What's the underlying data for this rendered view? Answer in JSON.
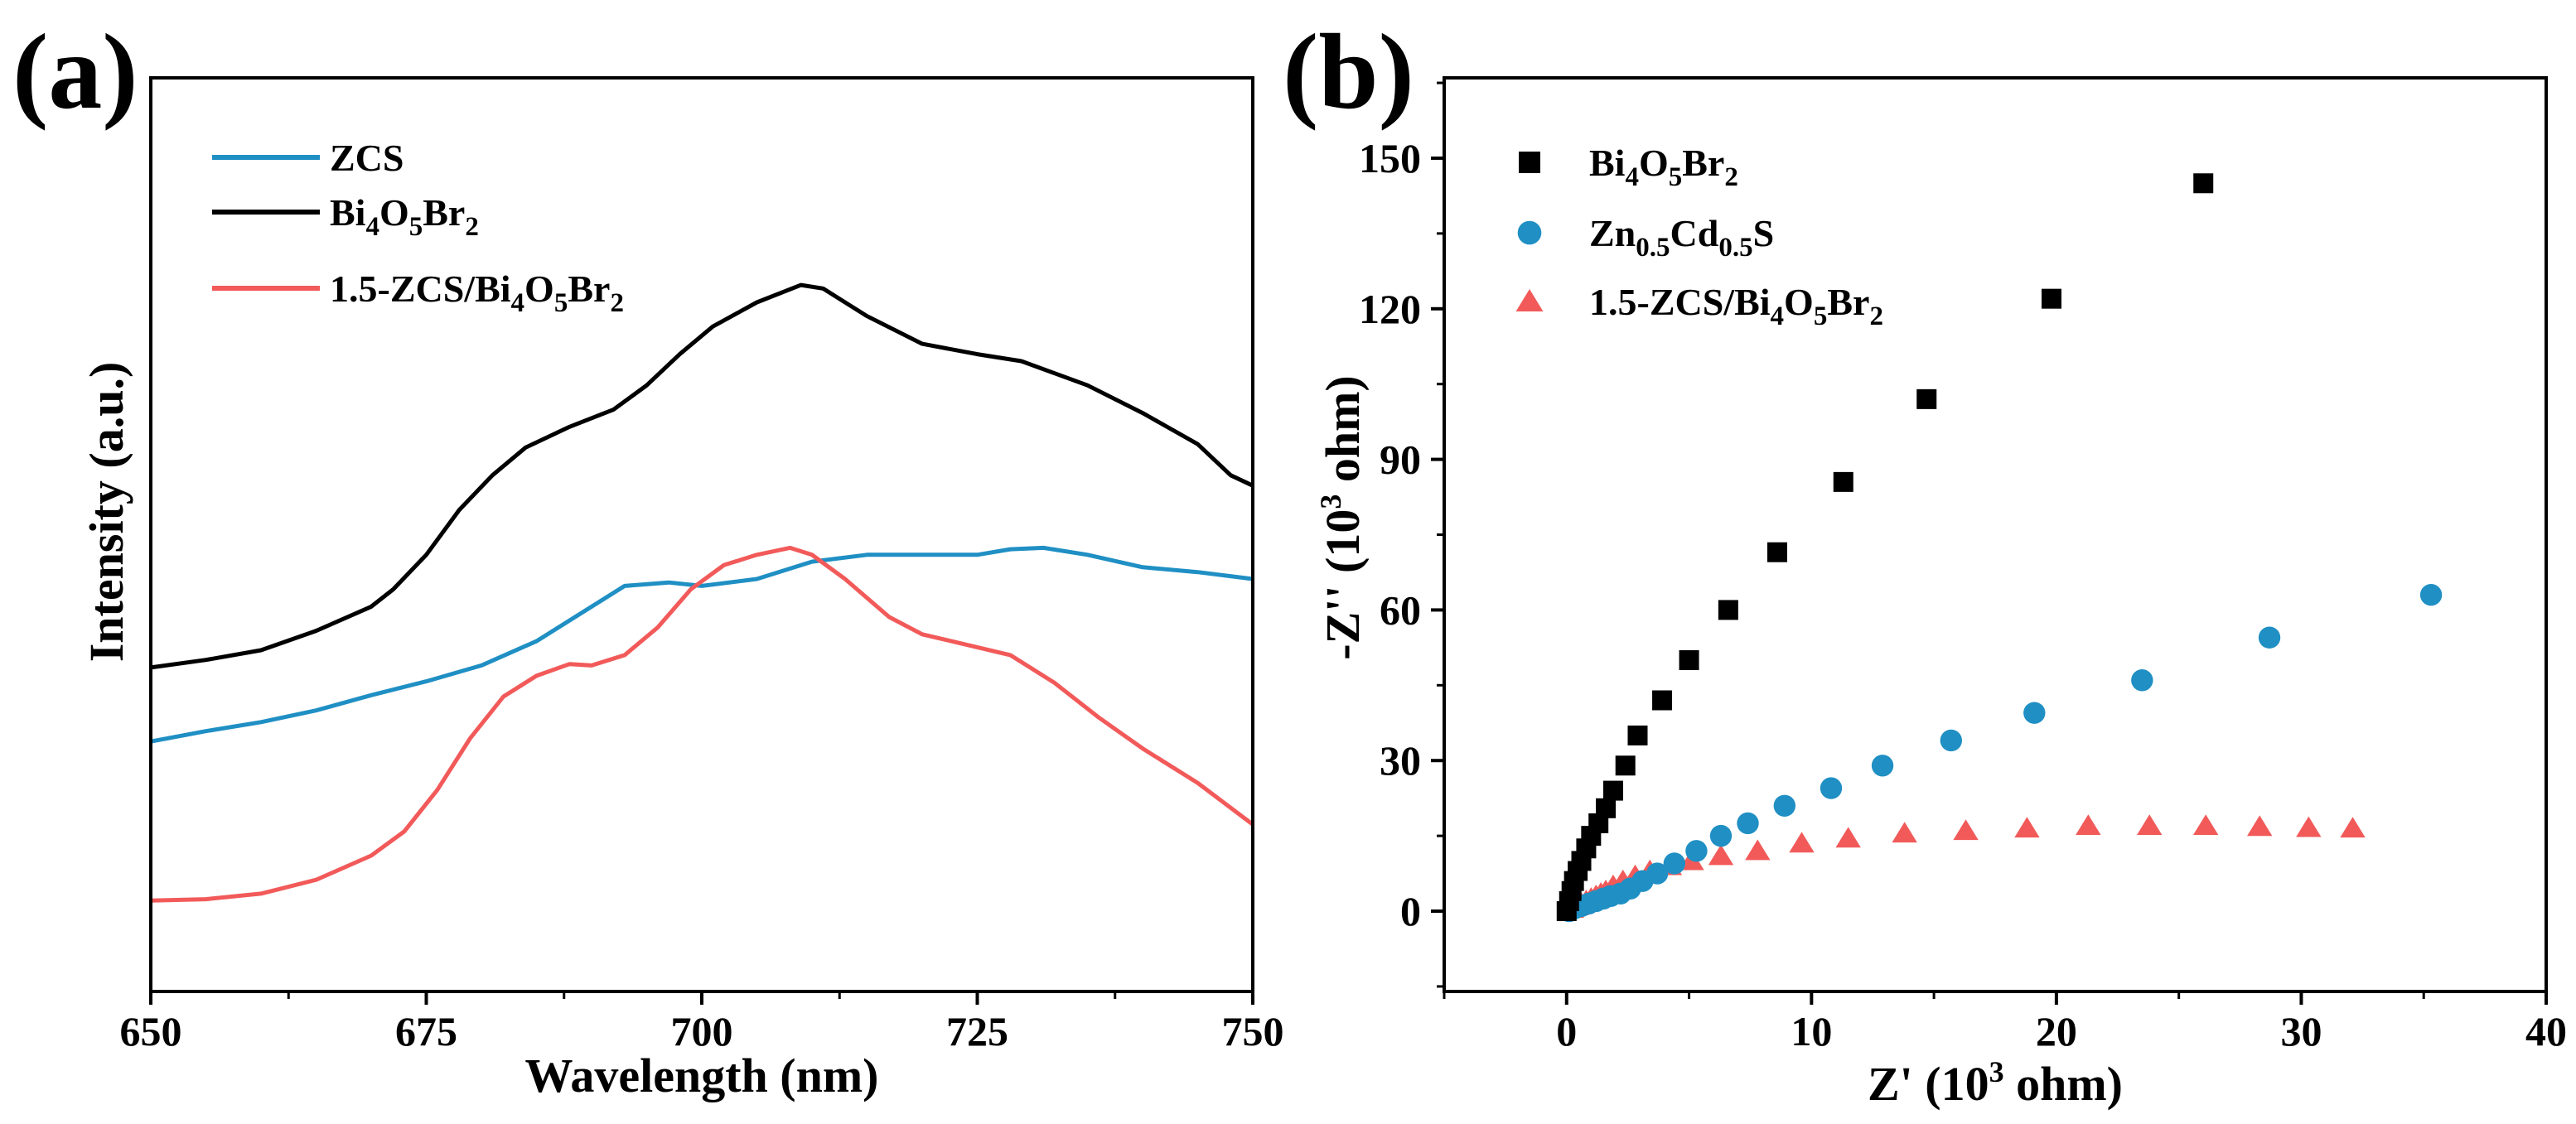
{
  "figure": {
    "panel_a_label": "(a)",
    "panel_b_label": "(b)"
  },
  "chart_data": [
    {
      "type": "line",
      "panel": "(a)",
      "title": "",
      "xlabel": "Wavelength (nm)",
      "ylabel": "Intensity (a.u.)",
      "xlim": [
        650,
        750
      ],
      "ylim": [
        0,
        1
      ],
      "xticks": [
        "650",
        "675",
        "700",
        "725",
        "750"
      ],
      "legend_position": "top-left",
      "legend": [
        {
          "base": "ZCS",
          "parts": [
            [
              "ZCS",
              ""
            ]
          ]
        },
        {
          "base": "Bi4O5Br2",
          "parts": [
            [
              "Bi",
              ""
            ],
            [
              "4",
              "sub"
            ],
            [
              "O",
              ""
            ],
            [
              "5",
              "sub"
            ],
            [
              "Br",
              ""
            ],
            [
              "2",
              "sub"
            ]
          ]
        },
        {
          "base": "1.5-ZCS/Bi4O5Br2",
          "parts": [
            [
              "1.5-ZCS/Bi",
              ""
            ],
            [
              "4",
              "sub"
            ],
            [
              "O",
              ""
            ],
            [
              "5",
              "sub"
            ],
            [
              "Br",
              ""
            ],
            [
              "2",
              "sub"
            ]
          ]
        }
      ],
      "series": [
        {
          "name": "ZCS",
          "color": "#1f8fc4",
          "x": [
            650,
            655,
            660,
            665,
            670,
            675,
            680,
            685,
            690,
            693,
            697,
            700,
            705,
            710,
            715,
            720,
            725,
            728,
            731,
            735,
            740,
            745,
            750
          ],
          "y": [
            0.365,
            0.38,
            0.393,
            0.41,
            0.432,
            0.452,
            0.475,
            0.51,
            0.56,
            0.59,
            0.595,
            0.59,
            0.6,
            0.625,
            0.635,
            0.635,
            0.635,
            0.643,
            0.645,
            0.635,
            0.617,
            0.61,
            0.6
          ]
        },
        {
          "name": "Bi4O5Br2",
          "color": "#000000",
          "x": [
            650,
            655,
            660,
            665,
            670,
            672,
            675,
            678,
            681,
            684,
            688,
            692,
            695,
            698,
            701,
            705,
            709,
            711,
            715,
            720,
            725,
            729,
            735,
            740,
            745,
            748,
            750
          ],
          "y": [
            0.472,
            0.483,
            0.497,
            0.525,
            0.56,
            0.585,
            0.635,
            0.7,
            0.75,
            0.79,
            0.82,
            0.845,
            0.88,
            0.925,
            0.965,
            1.0,
            1.025,
            1.02,
            0.98,
            0.94,
            0.925,
            0.915,
            0.88,
            0.84,
            0.795,
            0.75,
            0.735
          ]
        },
        {
          "name": "1.5-ZCS/Bi4O5Br2",
          "color": "#f25a5a",
          "x": [
            650,
            655,
            660,
            665,
            670,
            673,
            676,
            679,
            682,
            685,
            688,
            690,
            693,
            696,
            699,
            702,
            705,
            708,
            710,
            713,
            717,
            720,
            724,
            728,
            732,
            736,
            740,
            745,
            750
          ],
          "y": [
            0.135,
            0.137,
            0.145,
            0.165,
            0.2,
            0.235,
            0.295,
            0.37,
            0.43,
            0.46,
            0.477,
            0.475,
            0.49,
            0.53,
            0.585,
            0.62,
            0.635,
            0.645,
            0.635,
            0.6,
            0.545,
            0.52,
            0.505,
            0.49,
            0.45,
            0.4,
            0.355,
            0.305,
            0.245
          ]
        }
      ]
    },
    {
      "type": "scatter",
      "panel": "(b)",
      "title": "",
      "xlabel": "Z' (10³ ohm)",
      "ylabel": "-Z'' (10³ ohm)",
      "xlim": [
        -5,
        40
      ],
      "ylim": [
        -16,
        166
      ],
      "xticks": [
        0,
        10,
        20,
        30,
        40
      ],
      "yticks": [
        0,
        30,
        60,
        90,
        120,
        150
      ],
      "legend_position": "top-left",
      "legend": [
        {
          "base": "Bi4O5Br2",
          "marker": "square",
          "parts": [
            [
              "Bi",
              ""
            ],
            [
              "4",
              "sub"
            ],
            [
              "O",
              ""
            ],
            [
              "5",
              "sub"
            ],
            [
              "Br",
              ""
            ],
            [
              "2",
              "sub"
            ]
          ]
        },
        {
          "base": "Zn0.5Cd0.5S",
          "marker": "circle",
          "parts": [
            [
              "Zn",
              ""
            ],
            [
              "0.5",
              "sub"
            ],
            [
              "Cd",
              ""
            ],
            [
              "0.5",
              "sub"
            ],
            [
              "S",
              ""
            ]
          ]
        },
        {
          "base": "1.5-ZCS/Bi4O5Br2",
          "marker": "triangle",
          "parts": [
            [
              "1.5-ZCS/Bi",
              ""
            ],
            [
              "4",
              "sub"
            ],
            [
              "O",
              ""
            ],
            [
              "5",
              "sub"
            ],
            [
              "Br",
              ""
            ],
            [
              "2",
              "sub"
            ]
          ]
        }
      ],
      "series": [
        {
          "name": "Bi4O5Br2",
          "marker": "square",
          "color": "#000000",
          "points": [
            [
              0,
              0
            ],
            [
              0.1,
              2
            ],
            [
              0.2,
              4
            ],
            [
              0.3,
              6
            ],
            [
              0.45,
              8
            ],
            [
              0.6,
              10
            ],
            [
              0.8,
              12.5
            ],
            [
              1.0,
              15
            ],
            [
              1.3,
              17.5
            ],
            [
              1.6,
              20.5
            ],
            [
              1.9,
              24
            ],
            [
              2.4,
              29
            ],
            [
              2.9,
              35
            ],
            [
              3.9,
              42
            ],
            [
              5.0,
              50
            ],
            [
              6.6,
              60
            ],
            [
              8.6,
              71.5
            ],
            [
              11.3,
              85.5
            ],
            [
              14.7,
              102
            ],
            [
              19.8,
              122
            ],
            [
              26.0,
              145
            ]
          ]
        },
        {
          "name": "Zn0.5Cd0.5S",
          "marker": "circle",
          "color": "#1f8fc4",
          "points": [
            [
              0.1,
              0
            ],
            [
              0.3,
              0.5
            ],
            [
              0.6,
              1
            ],
            [
              0.9,
              1.5
            ],
            [
              1.2,
              2
            ],
            [
              1.5,
              2.5
            ],
            [
              1.8,
              3
            ],
            [
              2.2,
              3.5
            ],
            [
              2.6,
              4.5
            ],
            [
              3.1,
              6
            ],
            [
              3.7,
              7.5
            ],
            [
              4.4,
              9.5
            ],
            [
              5.3,
              12
            ],
            [
              6.3,
              15
            ],
            [
              7.4,
              17.5
            ],
            [
              8.9,
              21
            ],
            [
              10.8,
              24.5
            ],
            [
              12.9,
              29
            ],
            [
              15.7,
              34
            ],
            [
              19.1,
              39.5
            ],
            [
              23.5,
              46
            ],
            [
              28.7,
              54.5
            ],
            [
              35.3,
              63
            ]
          ]
        },
        {
          "name": "1.5-ZCS/Bi4O5Br2",
          "marker": "triangle",
          "color": "#f25a5a",
          "points": [
            [
              0.2,
              0.5
            ],
            [
              0.4,
              1
            ],
            [
              0.6,
              1.5
            ],
            [
              0.8,
              2
            ],
            [
              1.0,
              2.5
            ],
            [
              1.2,
              3
            ],
            [
              1.4,
              3.5
            ],
            [
              1.6,
              4
            ],
            [
              1.9,
              5
            ],
            [
              2.3,
              6
            ],
            [
              2.8,
              7
            ],
            [
              3.4,
              8
            ],
            [
              4.2,
              9
            ],
            [
              5.1,
              10
            ],
            [
              6.3,
              11
            ],
            [
              7.8,
              12
            ],
            [
              9.6,
              13.5
            ],
            [
              11.5,
              14.5
            ],
            [
              13.8,
              15.5
            ],
            [
              16.3,
              16
            ],
            [
              18.8,
              16.5
            ],
            [
              21.3,
              17
            ],
            [
              23.8,
              17
            ],
            [
              26.1,
              17
            ],
            [
              28.3,
              16.8
            ],
            [
              30.3,
              16.6
            ],
            [
              32.1,
              16.5
            ]
          ]
        }
      ]
    }
  ]
}
